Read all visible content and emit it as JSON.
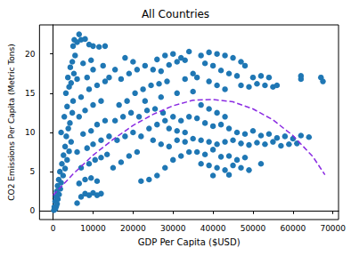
{
  "chart_data": {
    "type": "scatter",
    "title": "All Countries",
    "x_label": "GDP Per Capita ($USD)",
    "y_label": "CO2 Emissions Per Capita (Metric Tons)",
    "xlim": [
      -3400,
      71400
    ],
    "xticks": [
      0,
      10000,
      20000,
      30000,
      40000,
      50000,
      60000,
      70000
    ],
    "ylim": [
      -1.1,
      23.7
    ],
    "yticks": [
      0,
      5,
      10,
      15,
      20
    ],
    "grid": false,
    "series": [
      {
        "type": "scatter",
        "color": "#1f77b4",
        "marker": "circle",
        "x": [
          200,
          400,
          600,
          300,
          800,
          1000,
          500,
          1200,
          700,
          1500,
          900,
          1800,
          1100,
          2000,
          1400,
          2500,
          1700,
          3000,
          2200,
          3500,
          2600,
          4000,
          3000,
          4500,
          3300,
          2000,
          3800,
          4200,
          2800,
          4800,
          3500,
          5000,
          3200,
          4000,
          4500,
          3700,
          5200,
          4300,
          4800,
          5500,
          5000,
          5300,
          6000,
          6500,
          7000,
          8000,
          9000,
          10000,
          11500,
          13000,
          6000,
          7000,
          8000,
          9000,
          10000,
          11000,
          12000,
          6500,
          8000,
          9500,
          11000,
          7000,
          9000,
          10500,
          12000,
          13500,
          6000,
          8500,
          10000,
          12000,
          14000,
          7500,
          9500,
          11000,
          13000,
          6500,
          8000,
          10000,
          12000,
          7000,
          9000,
          11000,
          13000,
          6000,
          8500,
          10000,
          12500,
          7500,
          9500,
          14000,
          15000,
          17000,
          19000,
          21000,
          16000,
          18000,
          20000,
          22000,
          24000,
          15500,
          17500,
          19500,
          21500,
          23500,
          25500,
          27500,
          16500,
          18500,
          20500,
          22500,
          24500,
          26500,
          28500,
          17000,
          19000,
          21000,
          23000,
          25000,
          27000,
          29000,
          31000,
          33000,
          15500,
          18000,
          20000,
          26000,
          28000,
          30000,
          32000,
          34000,
          26000,
          28000,
          30000,
          32000,
          34000,
          29000,
          31000,
          33000,
          25000,
          27000,
          29000,
          31000,
          33000,
          35000,
          22000,
          24000,
          26000,
          28000,
          30000,
          32000,
          34000,
          23000,
          27000,
          31000,
          35000,
          33000,
          35000,
          37000,
          39000,
          41000,
          43000,
          45000,
          47000,
          48000,
          38000,
          40000,
          42000,
          44000,
          46000,
          50000,
          52000,
          36000,
          39000,
          41000,
          43000,
          47000,
          49000,
          51000,
          53000,
          55000,
          56000,
          54000,
          62000,
          67000,
          67500,
          62000,
          37000,
          39000,
          41000,
          43000,
          36000,
          38000,
          40000,
          42000,
          44000,
          46000,
          48000,
          50000,
          52000,
          54000,
          56000,
          58000,
          60000,
          62000,
          64000,
          37000,
          39000,
          41000,
          43000,
          45000,
          47000,
          49000,
          51000,
          53000,
          55000,
          57000,
          59000,
          61000,
          36000,
          38000,
          40000,
          42000,
          44000,
          46000,
          48000,
          37000,
          39000,
          41000,
          43000,
          45000,
          47000,
          49000,
          52000,
          40000,
          44000
        ],
        "values": [
          0.1,
          0.2,
          0.3,
          0.5,
          0.6,
          0.9,
          1.2,
          1.5,
          1.8,
          2.1,
          2.5,
          2.8,
          3.2,
          3.6,
          4.0,
          4.5,
          5.0,
          5.4,
          6.0,
          6.5,
          7.1,
          7.6,
          8.2,
          8.8,
          9.5,
          10.0,
          10.5,
          11.2,
          12.0,
          12.5,
          13.3,
          14.0,
          15.0,
          15.8,
          16.3,
          17.0,
          17.5,
          18.3,
          19.0,
          19.8,
          21.0,
          21.8,
          21.5,
          22.5,
          21.8,
          21.9,
          21.2,
          21.0,
          20.9,
          21.0,
          1.0,
          1.8,
          2.2,
          2.0,
          2.3,
          2.0,
          2.2,
          3.5,
          4.0,
          4.2,
          3.8,
          5.5,
          6.0,
          6.5,
          6.8,
          7.2,
          7.5,
          8.0,
          8.5,
          9.0,
          9.5,
          9.8,
          10.2,
          11.0,
          11.5,
          12.0,
          12.8,
          13.5,
          14.0,
          14.5,
          15.5,
          16.0,
          16.5,
          16.8,
          17.0,
          18.0,
          18.5,
          18.8,
          19.2,
          17.0,
          5.5,
          6.2,
          7.0,
          7.5,
          9.0,
          9.5,
          10.0,
          9.5,
          10.5,
          11.5,
          12.0,
          12.5,
          12.0,
          12.8,
          13.0,
          12.5,
          13.5,
          14.0,
          15.0,
          15.5,
          16.0,
          16.2,
          16.5,
          16.8,
          17.5,
          18.0,
          18.5,
          18.0,
          17.8,
          18.6,
          19.0,
          19.2,
          18.0,
          19.5,
          19.0,
          19.3,
          19.8,
          20.0,
          19.5,
          20.3,
          11.0,
          11.5,
          12.0,
          11.5,
          12.0,
          10.5,
          10.2,
          10.0,
          9.0,
          8.5,
          8.2,
          9.0,
          8.8,
          9.2,
          3.8,
          4.0,
          4.5,
          5.5,
          6.5,
          7.0,
          7.5,
          14.0,
          14.5,
          15.0,
          15.2,
          16.8,
          17.5,
          19.8,
          20.2,
          20.0,
          19.8,
          19.5,
          19.0,
          18.5,
          18.8,
          18.5,
          17.9,
          17.5,
          17.2,
          17.0,
          17.2,
          17.0,
          16.5,
          16.0,
          15.5,
          16.0,
          15.8,
          16.2,
          16.0,
          15.8,
          16.0,
          17.0,
          17.2,
          17.0,
          16.5,
          16.8,
          13.5,
          13.0,
          12.5,
          12.0,
          11.8,
          11.2,
          10.8,
          11.0,
          10.5,
          10.0,
          9.8,
          10.2,
          9.6,
          9.8,
          9.3,
          9.5,
          9.2,
          9.6,
          9.4,
          9.0,
          8.8,
          8.5,
          8.8,
          9.0,
          8.6,
          8.4,
          8.7,
          8.5,
          8.8,
          8.3,
          8.5,
          8.6,
          7.5,
          7.2,
          7.8,
          6.9,
          7.0,
          6.5,
          6.8,
          6.0,
          5.8,
          5.5,
          5.2,
          5.8,
          5.5,
          5.2,
          6.0,
          4.5,
          4.6
        ]
      },
      {
        "type": "line",
        "color": "#8a2be2",
        "line_style": "dashed",
        "x": [
          0,
          5000,
          10000,
          15000,
          20000,
          25000,
          30000,
          35000,
          40000,
          45000,
          50000,
          55000,
          60000,
          65000,
          68000
        ],
        "values": [
          2.0,
          4.7,
          7.1,
          9.1,
          10.9,
          12.3,
          13.4,
          14.1,
          14.2,
          13.9,
          13.0,
          11.6,
          9.6,
          6.9,
          4.6
        ]
      }
    ]
  }
}
